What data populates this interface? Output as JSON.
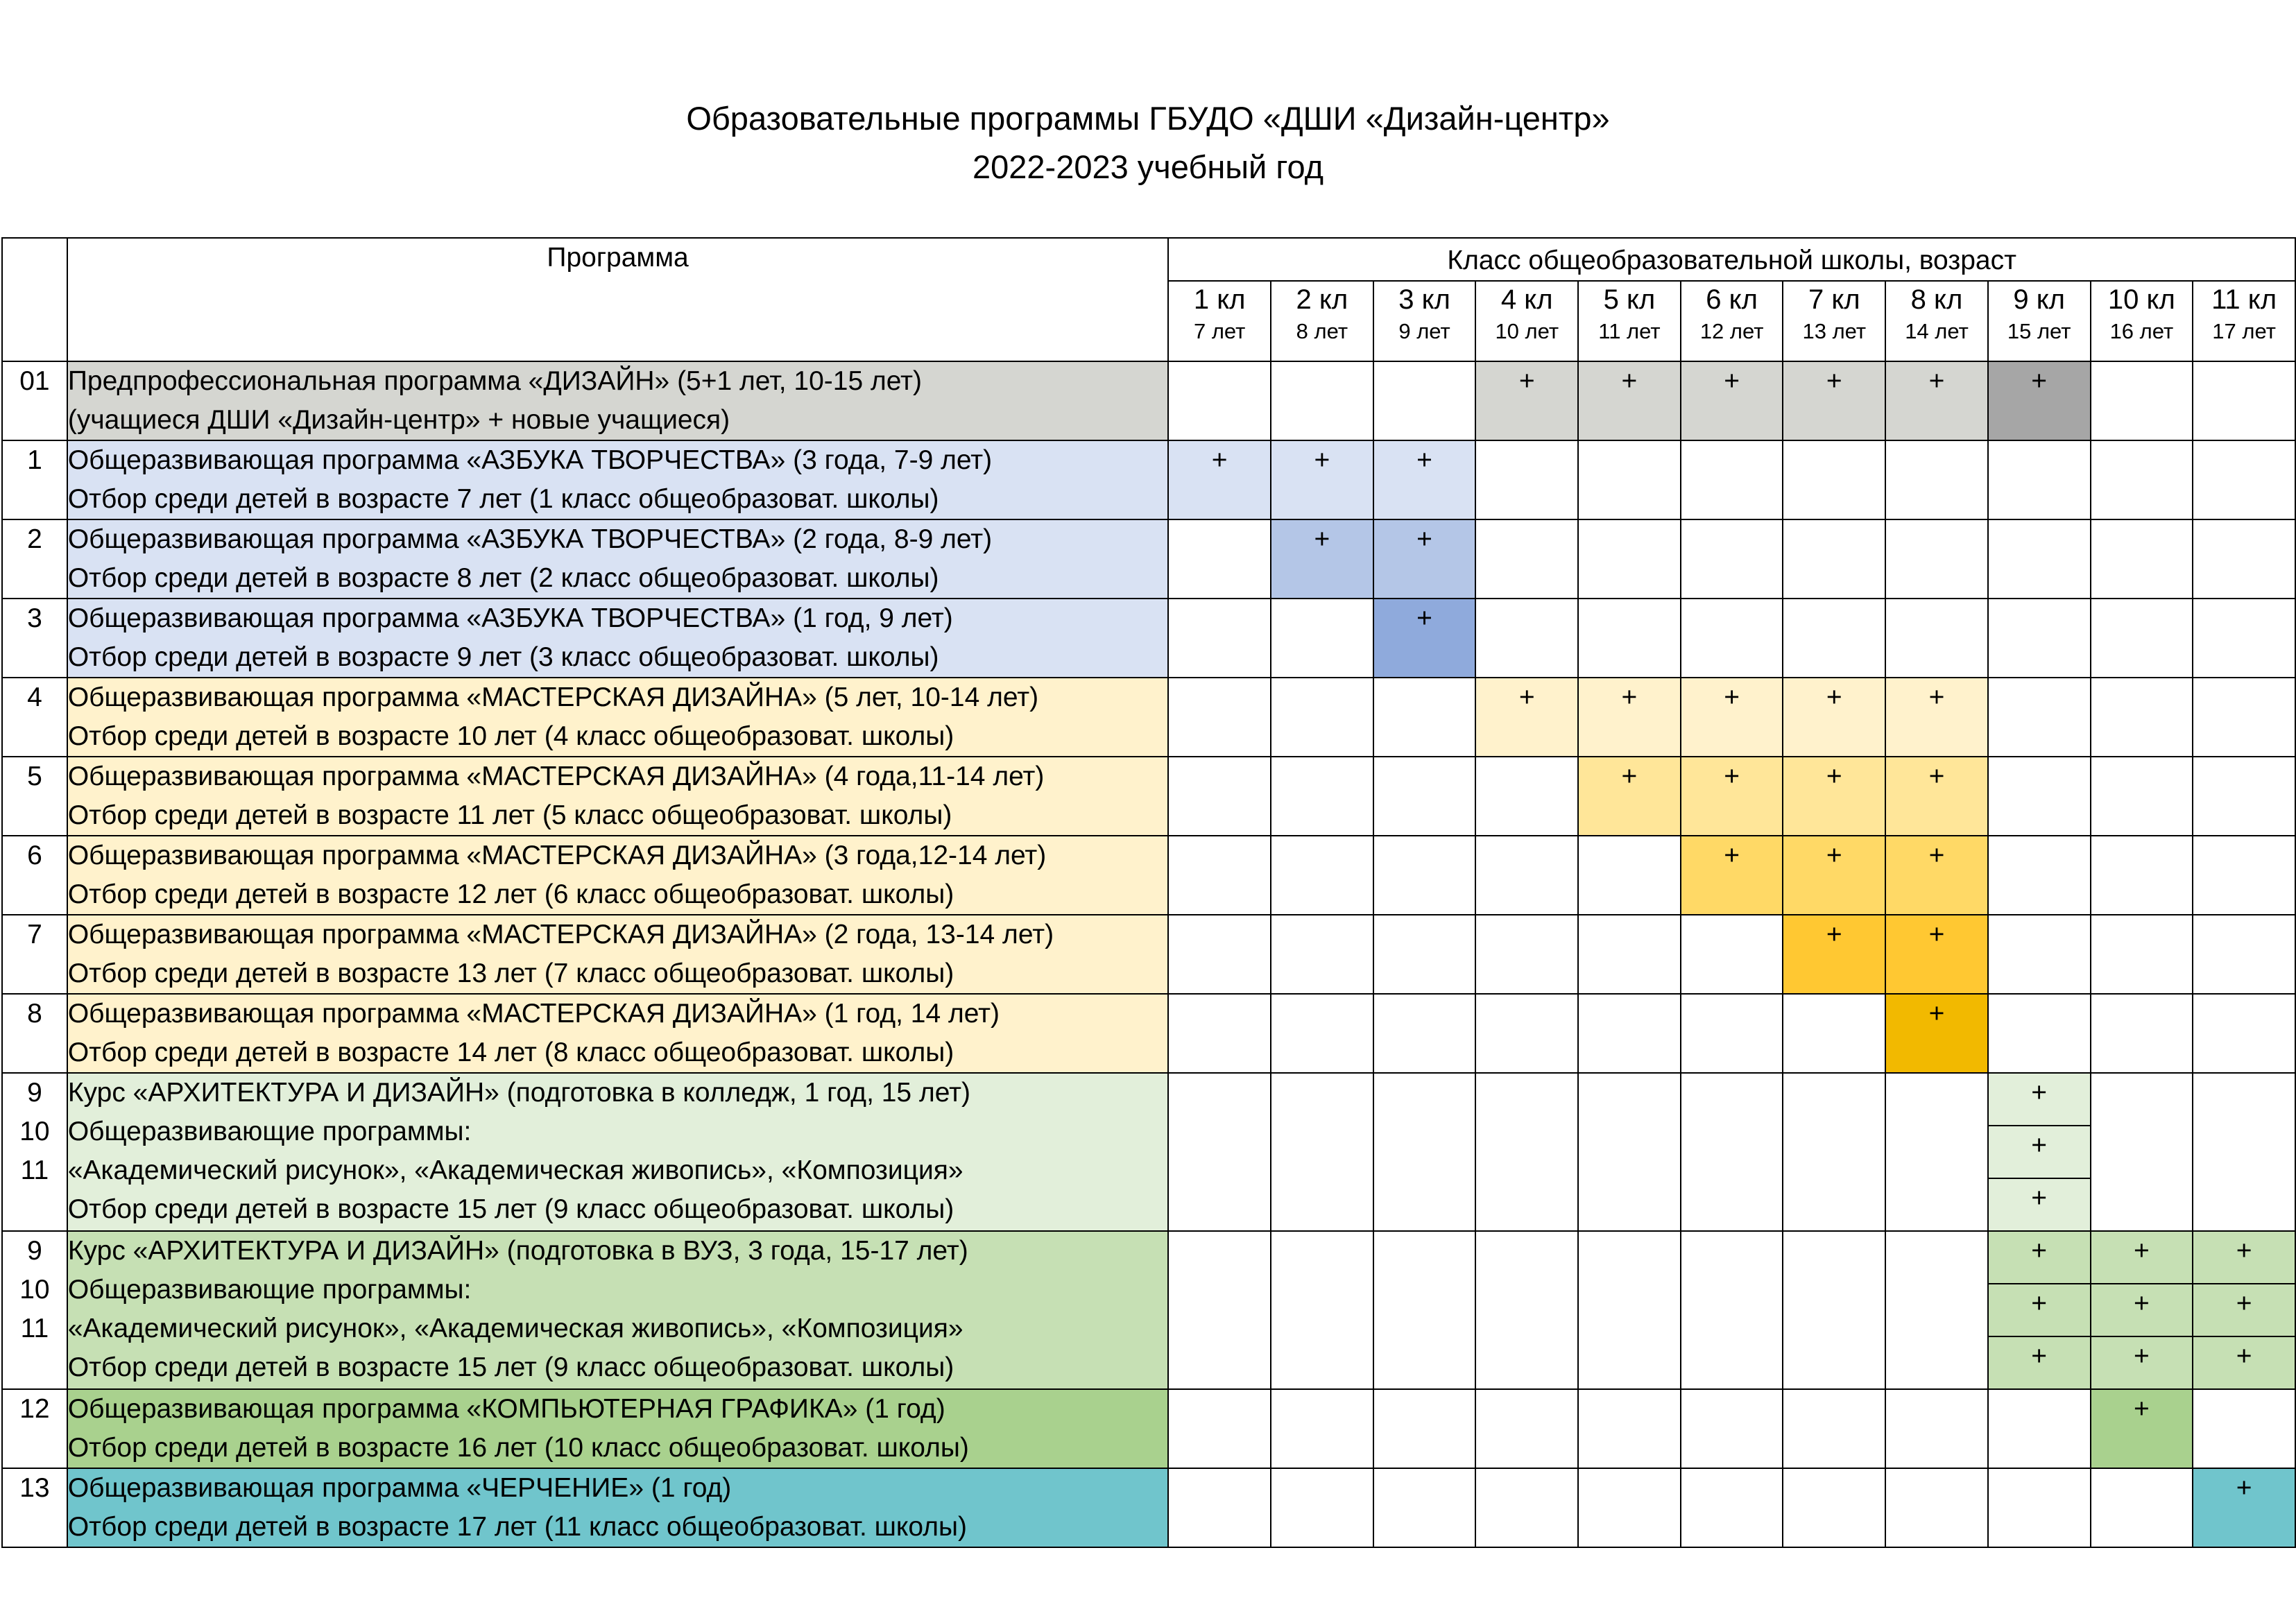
{
  "title": {
    "line1": "Образовательные программы ГБУДО «ДШИ «Дизайн-центр»",
    "line2": "2022-2023 учебный год"
  },
  "header": {
    "program": "Программа",
    "classes_group": "Класс общеобразовательной школы, возраст",
    "classes": [
      {
        "k": "1 кл",
        "a": "7 лет"
      },
      {
        "k": "2 кл",
        "a": "8 лет"
      },
      {
        "k": "3 кл",
        "a": "9 лет"
      },
      {
        "k": "4 кл",
        "a": "10 лет"
      },
      {
        "k": "5 кл",
        "a": "11 лет"
      },
      {
        "k": "6 кл",
        "a": "12 лет"
      },
      {
        "k": "7 кл",
        "a": "13 лет"
      },
      {
        "k": "8 кл",
        "a": "14 лет"
      },
      {
        "k": "9 кл",
        "a": "15 лет"
      },
      {
        "k": "10 кл",
        "a": "16 лет"
      },
      {
        "k": "11 кл",
        "a": "17 лет"
      }
    ]
  },
  "mark": "+",
  "colors": {
    "gray": "#d5d6d1",
    "dark_gray": "#a6a6a6",
    "blue_light": "#d9e2f3",
    "blue_mid": "#b4c6e7",
    "blue_dark": "#8faadc",
    "yellow_1": "#fff2cc",
    "yellow_2": "#ffe699",
    "yellow_3": "#ffd966",
    "yellow_4": "#ffc832",
    "yellow_5": "#f2b900",
    "green_light": "#e2efda",
    "green_mid": "#c6e0b4",
    "green_dark": "#a9d18e",
    "teal": "#70c5cc"
  },
  "rows": [
    {
      "num": "01",
      "line1": "Предпрофессиональная программа «ДИЗАЙН» (5+1 лет, 10-15 лет)",
      "line2": "(учащиеся ДШИ «Дизайн-центр» + новые учащиеся)"
    },
    {
      "num": "1",
      "line1": "Общеразвивающая программа «АЗБУКА ТВОРЧЕСТВА» (3 года, 7-9 лет)",
      "line2": "Отбор среди детей в возрасте 7 лет (1 класс общеобразоват. школы)"
    },
    {
      "num": "2",
      "line1": "Общеразвивающая программа «АЗБУКА ТВОРЧЕСТВА» (2 года, 8-9 лет)",
      "line2": "Отбор среди детей в возрасте 8 лет (2 класс общеобразоват. школы)"
    },
    {
      "num": "3",
      "line1": "Общеразвивающая программа «АЗБУКА ТВОРЧЕСТВА» (1 год, 9 лет)",
      "line2": "Отбор среди детей в возрасте 9 лет (3 класс общеобразоват. школы)"
    },
    {
      "num": "4",
      "line1": "Общеразвивающая программа «МАСТЕРСКАЯ ДИЗАЙНА» (5 лет, 10-14 лет)",
      "line2": "Отбор среди детей в возрасте 10 лет (4 класс общеобразоват. школы)"
    },
    {
      "num": "5",
      "line1": "Общеразвивающая программа «МАСТЕРСКАЯ ДИЗАЙНА» (4 года,11-14 лет)",
      "line2": "Отбор среди детей в возрасте 11 лет (5 класс общеобразоват. школы)"
    },
    {
      "num": "6",
      "line1": "Общеразвивающая программа «МАСТЕРСКАЯ ДИЗАЙНА» (3 года,12-14 лет)",
      "line2": "Отбор среди детей в возрасте 12 лет (6 класс общеобразоват. школы)"
    },
    {
      "num": "7",
      "line1": "Общеразвивающая программа «МАСТЕРСКАЯ ДИЗАЙНА» (2 года, 13-14 лет)",
      "line2": "Отбор среди детей в возрасте 13 лет (7 класс общеобразоват. школы)"
    },
    {
      "num": "8",
      "line1": "Общеразвивающая программа «МАСТЕРСКАЯ ДИЗАЙНА» (1 год, 14 лет)",
      "line2": "Отбор среди детей в возрасте 14 лет (8 класс общеобразоват. школы)"
    },
    {
      "nums": [
        "9",
        "10",
        "11"
      ],
      "lines": [
        "Курс «АРХИТЕКТУРА И ДИЗАЙН» (подготовка в колледж, 1 год, 15 лет)",
        "Общеразвивающие программы:",
        "«Академический рисунок», «Академическая живопись», «Композиция»",
        "Отбор среди детей в возрасте 15 лет (9 класс общеобразоват. школы)"
      ]
    },
    {
      "nums": [
        "9",
        "10",
        "11"
      ],
      "lines": [
        "Курс «АРХИТЕКТУРА И ДИЗАЙН» (подготовка в ВУЗ, 3 года, 15-17 лет)",
        "Общеразвивающие программы:",
        "«Академический рисунок», «Академическая живопись», «Композиция»",
        "Отбор среди детей в возрасте 15 лет (9 класс общеобразоват. школы)"
      ]
    },
    {
      "num": "12",
      "line1": "Общеразвивающая программа «КОМПЬЮТЕРНАЯ ГРАФИКА» (1 год)",
      "line2": "Отбор среди детей в возрасте 16 лет (10 класс общеобразоват. школы)"
    },
    {
      "num": "13",
      "line1": "Общеразвивающая программа «ЧЕРЧЕНИЕ» (1 год)",
      "line2": "Отбор среди детей в возрасте 17 лет (11 класс общеобразоват. школы)"
    }
  ]
}
